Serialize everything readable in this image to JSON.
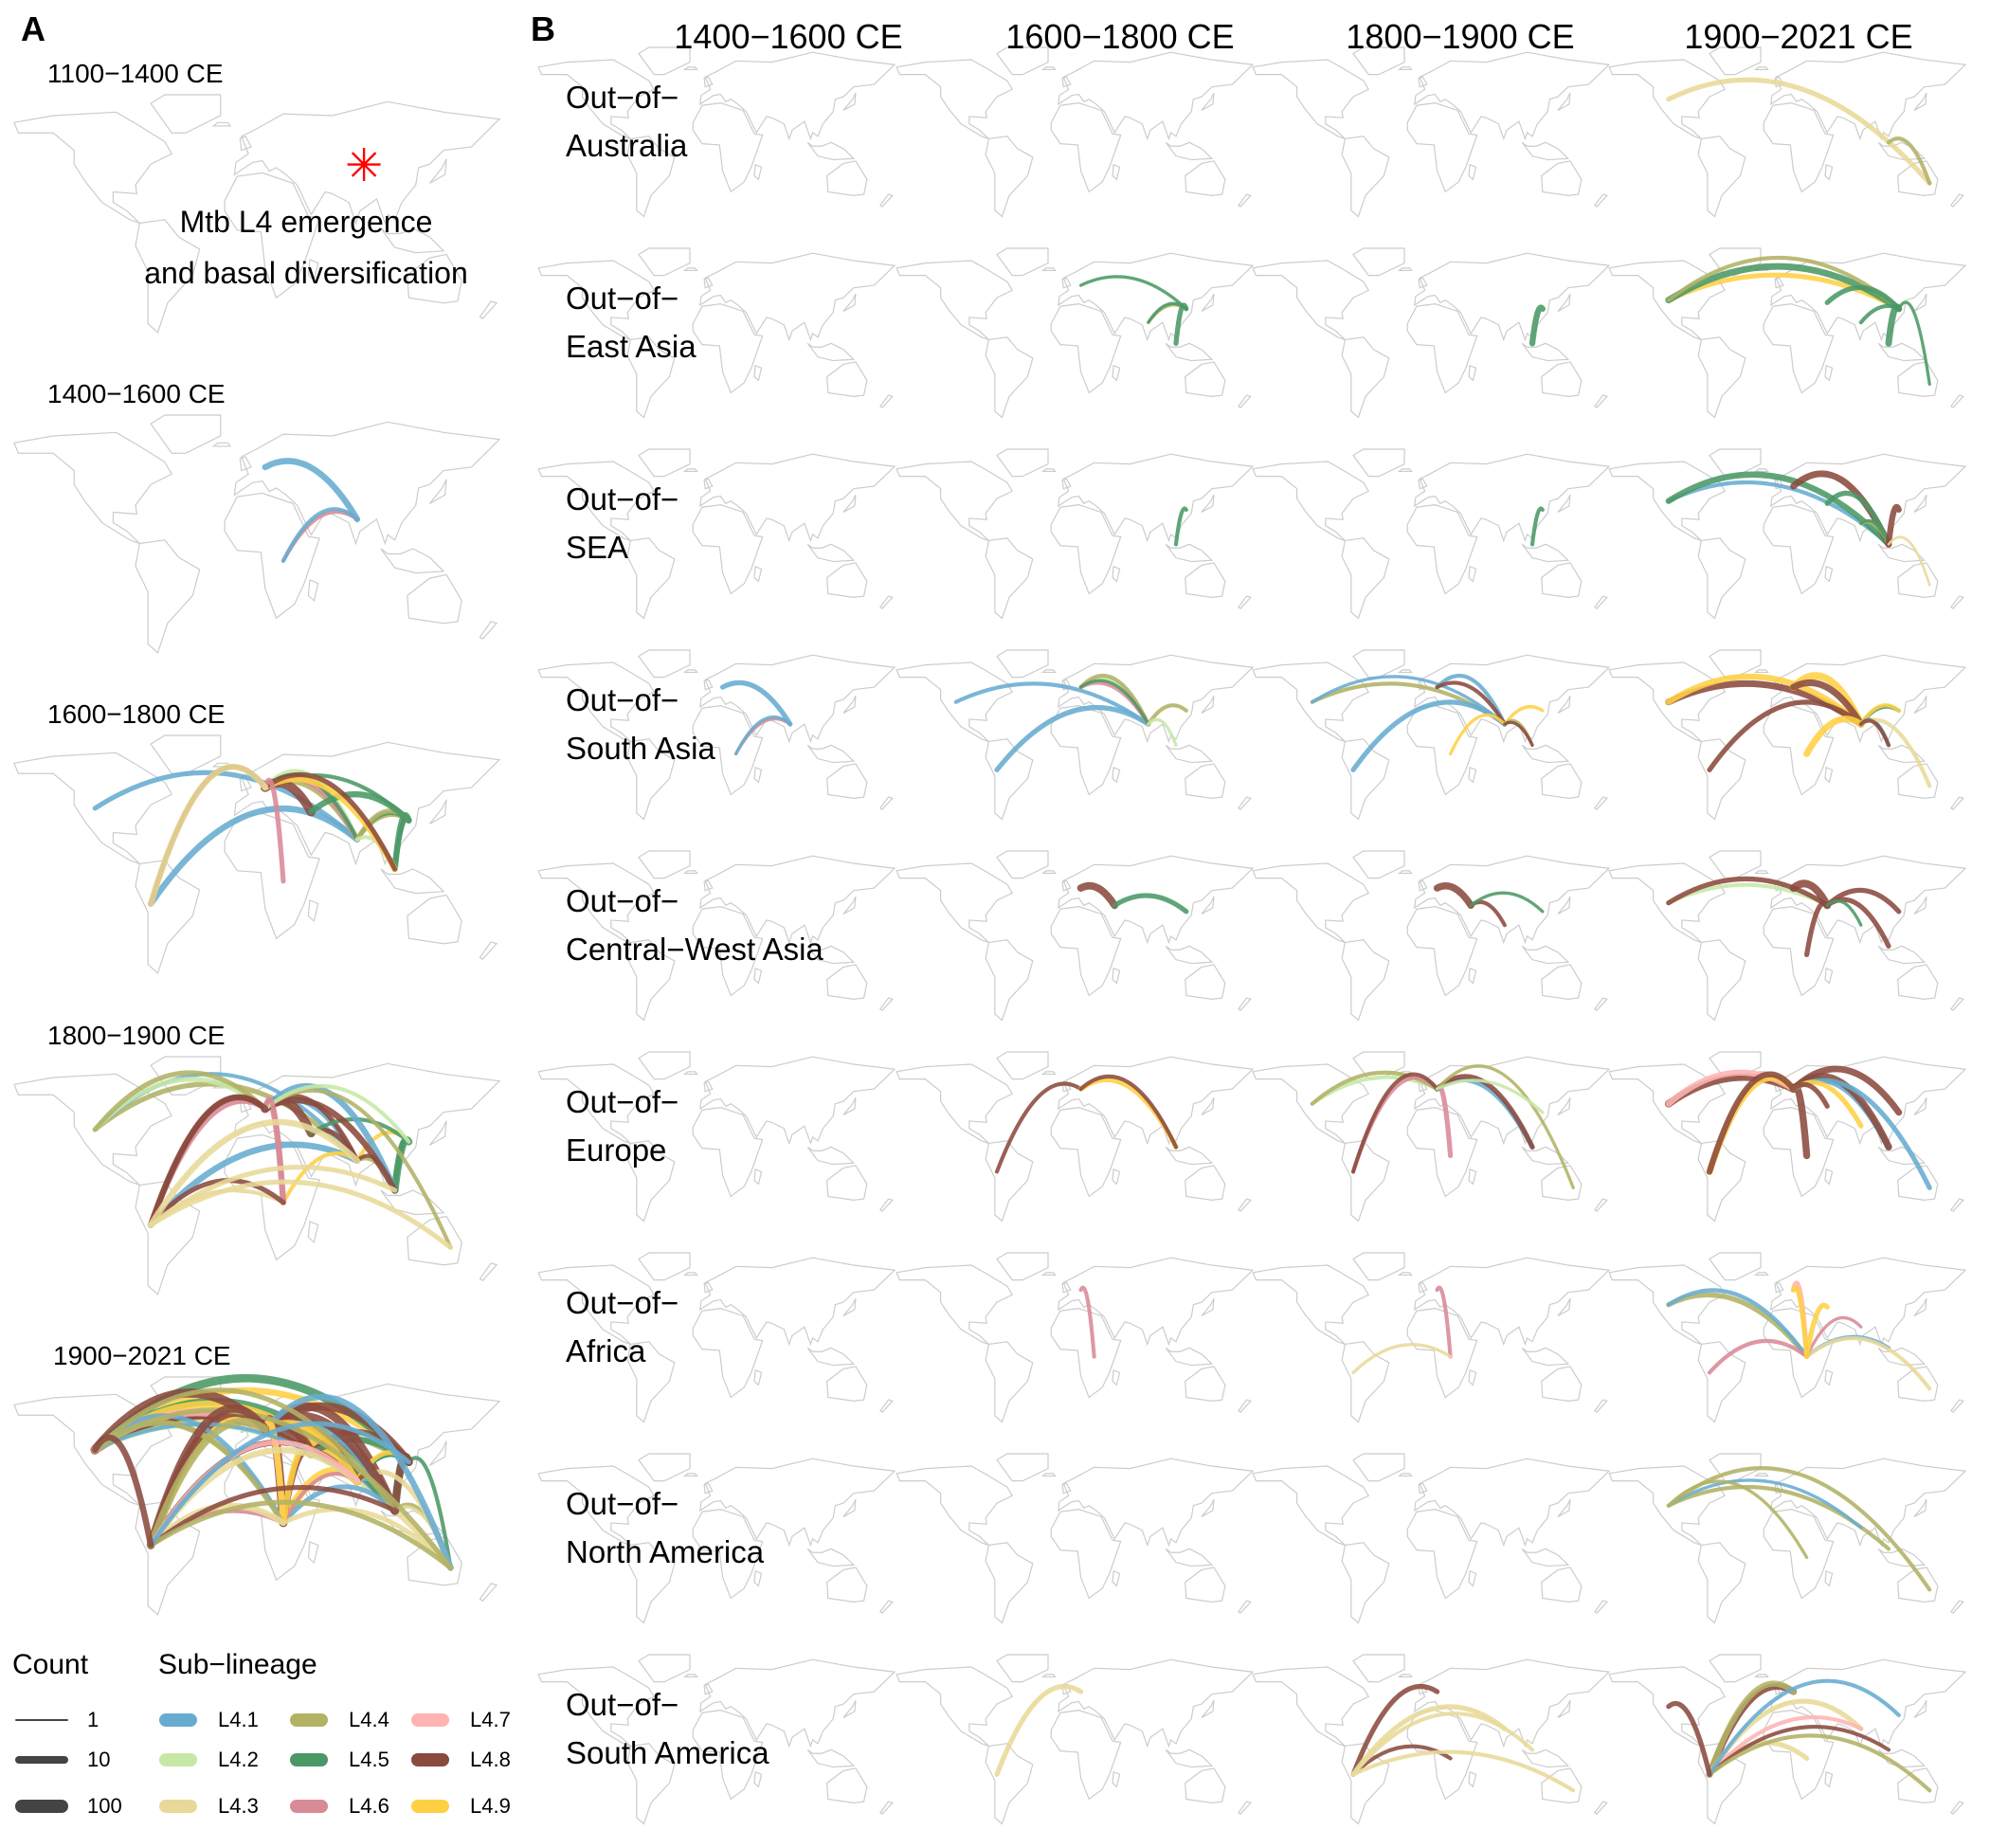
{
  "panel_a": {
    "label": "A",
    "periods": [
      {
        "title": "1100−1400 CE",
        "annotation": [
          "Mtb L4 emergence",
          "and basal diversification"
        ],
        "marker": "red-asterisk"
      },
      {
        "title": "1400−1600 CE"
      },
      {
        "title": "1600−1800 CE"
      },
      {
        "title": "1800−1900 CE"
      },
      {
        "title": "1900−2021 CE"
      }
    ]
  },
  "panel_b": {
    "label": "B",
    "columns": [
      "1400−1600 CE",
      "1600−1800 CE",
      "1800−1900 CE",
      "1900−2021 CE"
    ],
    "rows": [
      {
        "label": [
          "Out−of−",
          "Australia"
        ],
        "flows": [
          [],
          [],
          [],
          [
            [
              "North America",
              "L4.3",
              10
            ],
            [
              "SEA",
              "L4.4",
              5
            ]
          ]
        ]
      },
      {
        "label": [
          "Out−of−",
          "East Asia"
        ],
        "flows": [
          [],
          [
            [
              "Europe",
              "L4.5",
              3
            ],
            [
              "South Asia",
              "L4.4",
              3
            ],
            [
              "South Asia",
              "L4.5",
              3
            ],
            [
              "SEA",
              "L4.5",
              10
            ]
          ],
          [
            [
              "SEA",
              "L4.5",
              20
            ]
          ],
          [
            [
              "North America",
              "L4.9",
              10
            ],
            [
              "North America",
              "L4.5",
              30
            ],
            [
              "North America",
              "L4.4",
              5
            ],
            [
              "Central−West Asia",
              "L4.5",
              10
            ],
            [
              "South Asia",
              "L4.5",
              5
            ],
            [
              "SEA",
              "L4.5",
              30
            ],
            [
              "Australia",
              "L4.5",
              3
            ]
          ]
        ]
      },
      {
        "label": [
          "Out−of−",
          "SEA"
        ],
        "flows": [
          [],
          [
            [
              "East Asia",
              "L4.5",
              5
            ]
          ],
          [
            [
              "East Asia",
              "L4.5",
              5
            ]
          ],
          [
            [
              "North America",
              "L4.1",
              5
            ],
            [
              "North America",
              "L4.5",
              20
            ],
            [
              "Europe",
              "L4.8",
              30
            ],
            [
              "Central−West Asia",
              "L4.5",
              10
            ],
            [
              "South Asia",
              "L4.4",
              5
            ],
            [
              "South Asia",
              "L4.5",
              3
            ],
            [
              "East Asia",
              "L4.8",
              20
            ],
            [
              "Australia",
              "L4.3",
              2
            ]
          ]
        ]
      },
      {
        "label": [
          "Out−of−",
          "South Asia"
        ],
        "flows": [
          [
            [
              "Europe",
              "L4.1",
              10
            ],
            [
              "Africa",
              "L4.6",
              3
            ],
            [
              "Africa",
              "L4.1",
              3
            ]
          ],
          [
            [
              "North America",
              "L4.1",
              5
            ],
            [
              "South America",
              "L4.1",
              10
            ],
            [
              "Europe",
              "L4.2",
              5
            ],
            [
              "Europe",
              "L4.4",
              5
            ],
            [
              "Europe",
              "L4.6",
              5
            ],
            [
              "Europe",
              "L4.5",
              3
            ],
            [
              "East Asia",
              "L4.4",
              5
            ],
            [
              "SEA",
              "L4.2",
              3
            ]
          ],
          [
            [
              "North America",
              "L4.4",
              5
            ],
            [
              "North America",
              "L4.1",
              3
            ],
            [
              "South America",
              "L4.1",
              10
            ],
            [
              "Europe",
              "L4.1",
              5
            ],
            [
              "Europe",
              "L4.8",
              5
            ],
            [
              "East Asia",
              "L4.9",
              3
            ],
            [
              "SEA",
              "L4.4",
              3
            ],
            [
              "Africa",
              "L4.9",
              3
            ],
            [
              "SEA",
              "L4.8",
              3
            ]
          ],
          [
            [
              "North America",
              "L4.8",
              30
            ],
            [
              "North America",
              "L4.9",
              20
            ],
            [
              "South America",
              "L4.8",
              10
            ],
            [
              "Europe",
              "L4.9",
              50
            ],
            [
              "Europe",
              "L4.8",
              30
            ],
            [
              "East Asia",
              "L4.5",
              5
            ],
            [
              "East Asia",
              "L4.9",
              5
            ],
            [
              "SEA",
              "L4.1",
              5
            ],
            [
              "Australia",
              "L4.3",
              5
            ],
            [
              "Africa",
              "L4.9",
              30
            ],
            [
              "SEA",
              "L4.8",
              5
            ]
          ]
        ]
      },
      {
        "label": [
          "Out−of−",
          "Central−West Asia"
        ],
        "flows": [
          [],
          [
            [
              "Europe",
              "L4.8",
              50
            ],
            [
              "East Asia",
              "L4.5",
              10
            ]
          ],
          [
            [
              "Europe",
              "L4.8",
              40
            ],
            [
              "South Asia",
              "L4.8",
              5
            ],
            [
              "East Asia",
              "L4.5",
              3
            ]
          ],
          [
            [
              "North America",
              "L4.2",
              5
            ],
            [
              "North America",
              "L4.8",
              10
            ],
            [
              "Europe",
              "L4.8",
              60
            ],
            [
              "East Asia",
              "L4.8",
              10
            ],
            [
              "Africa",
              "L4.8",
              10
            ],
            [
              "SEA",
              "L4.8",
              10
            ],
            [
              "South Asia",
              "L4.5",
              3
            ]
          ]
        ]
      },
      {
        "label": [
          "Out−of−",
          "Europe"
        ],
        "flows": [
          [],
          [
            [
              "South America",
              "L4.8",
              5
            ],
            [
              "SEA",
              "L4.9",
              10
            ],
            [
              "SEA",
              "L4.8",
              5
            ]
          ],
          [
            [
              "North America",
              "L4.2",
              5
            ],
            [
              "North America",
              "L4.4",
              5
            ],
            [
              "South America",
              "L4.6",
              5
            ],
            [
              "South America",
              "L4.8",
              5
            ],
            [
              "Africa",
              "L4.6",
              10
            ],
            [
              "SEA",
              "L4.1",
              10
            ],
            [
              "SEA",
              "L4.8",
              10
            ],
            [
              "Australia",
              "L4.4",
              3
            ],
            [
              "East Asia",
              "L4.2",
              3
            ]
          ],
          [
            [
              "North America",
              "L4.8",
              50
            ],
            [
              "North America",
              "L4.7",
              20
            ],
            [
              "South America",
              "L4.9",
              30
            ],
            [
              "South America",
              "L4.8",
              20
            ],
            [
              "Africa",
              "L4.8",
              40
            ],
            [
              "SEA",
              "L4.1",
              20
            ],
            [
              "SEA",
              "L4.8",
              40
            ],
            [
              "East Asia",
              "L4.8",
              30
            ],
            [
              "Australia",
              "L4.1",
              10
            ],
            [
              "South Asia",
              "L4.9",
              10
            ],
            [
              "Central−West Asia",
              "L4.8",
              10
            ]
          ]
        ]
      },
      {
        "label": [
          "Out−of−",
          "Africa"
        ],
        "flows": [
          [],
          [
            [
              "Europe",
              "L4.6",
              5
            ]
          ],
          [
            [
              "Europe",
              "L4.6",
              5
            ],
            [
              "South America",
              "L4.3",
              3
            ]
          ],
          [
            [
              "North America",
              "L4.4",
              10
            ],
            [
              "North America",
              "L4.1",
              5
            ],
            [
              "South America",
              "L4.6",
              5
            ],
            [
              "Europe",
              "L4.7",
              10
            ],
            [
              "Europe",
              "L4.9",
              10
            ],
            [
              "SEA",
              "L4.1",
              5
            ],
            [
              "Australia",
              "L4.3",
              5
            ],
            [
              "South Asia",
              "L4.6",
              3
            ],
            [
              "Central−West Asia",
              "L4.9",
              10
            ]
          ]
        ]
      },
      {
        "label": [
          "Out−of−",
          "North America"
        ],
        "flows": [
          [],
          [],
          [],
          [
            [
              "SEA",
              "L4.4",
              5
            ],
            [
              "South Asia",
              "L4.1",
              3
            ],
            [
              "Australia",
              "L4.4",
              5
            ],
            [
              "Africa",
              "L4.4",
              3
            ]
          ]
        ]
      },
      {
        "label": [
          "Out−of−",
          "South America"
        ],
        "flows": [
          [],
          [
            [
              "Europe",
              "L4.3",
              10
            ]
          ],
          [
            [
              "Europe",
              "L4.8",
              10
            ],
            [
              "Africa",
              "L4.8",
              5
            ],
            [
              "South Asia",
              "L4.3",
              10
            ],
            [
              "SEA",
              "L4.3",
              5
            ],
            [
              "Australia",
              "L4.3",
              5
            ]
          ],
          [
            [
              "Europe",
              "L4.8",
              30
            ],
            [
              "Europe",
              "L4.4",
              20
            ],
            [
              "Africa",
              "L4.3",
              10
            ],
            [
              "South Asia",
              "L4.3",
              10
            ],
            [
              "South Asia",
              "L4.7",
              5
            ],
            [
              "SEA",
              "L4.8",
              5
            ],
            [
              "Australia",
              "L4.4",
              5
            ],
            [
              "East Asia",
              "L4.1",
              5
            ],
            [
              "North America",
              "L4.8",
              10
            ]
          ]
        ]
      }
    ]
  },
  "legend": {
    "count_title": "Count",
    "counts": [
      {
        "label": "1",
        "value": 1
      },
      {
        "label": "10",
        "value": 10
      },
      {
        "label": "100",
        "value": 100
      }
    ],
    "lineage_title": "Sub−lineage",
    "lineages": [
      "L4.1",
      "L4.2",
      "L4.3",
      "L4.4",
      "L4.5",
      "L4.6",
      "L4.7",
      "L4.8",
      "L4.9"
    ]
  },
  "lineage_colors": {
    "L4.1": "#67acd0",
    "L4.2": "#c6e8a6",
    "L4.3": "#e8d999",
    "L4.4": "#b2b265",
    "L4.5": "#4a9865",
    "L4.6": "#d88a96",
    "L4.7": "#ffb3b3",
    "L4.8": "#8b4a3e",
    "L4.9": "#ffd044"
  },
  "count_color": "#444444",
  "map_color": "#cccccc",
  "marker_color": "#ff0000"
}
